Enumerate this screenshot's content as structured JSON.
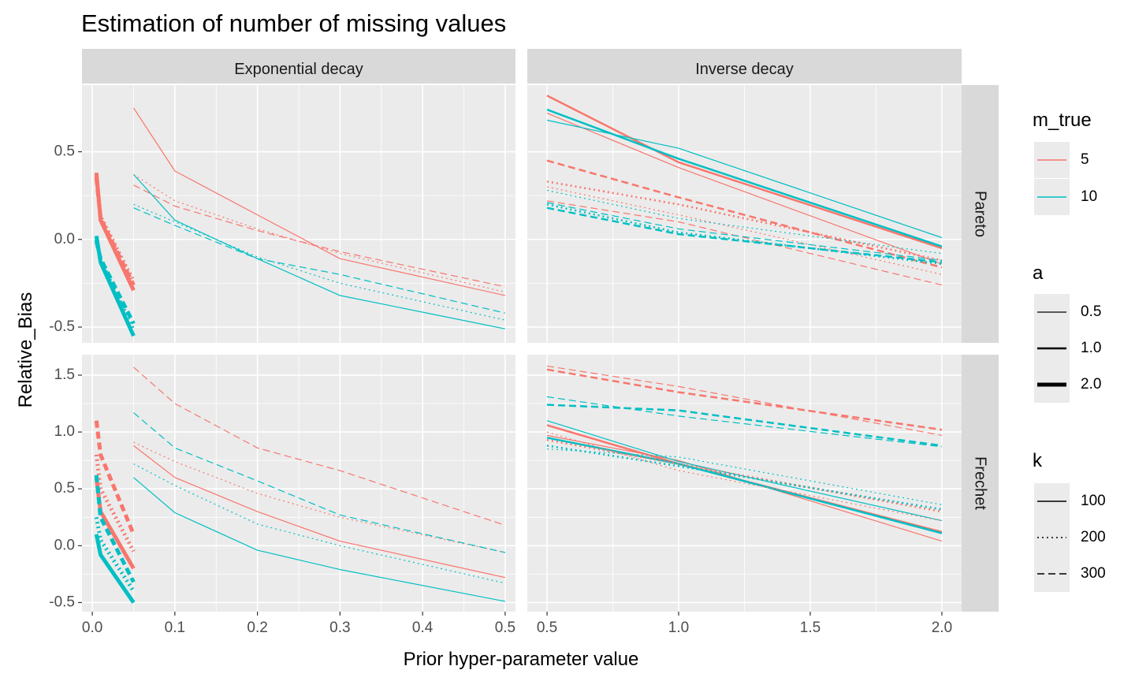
{
  "chart_data": {
    "type": "line",
    "title": "Estimation of number of missing values",
    "xlabel": "Prior hyper-parameter value",
    "ylabel": "Relative_Bias",
    "facets": {
      "columns": [
        "Exponential decay",
        "Inverse decay"
      ],
      "rows": [
        "Pareto",
        "Frechet"
      ]
    },
    "x_axes": [
      {
        "column": "Exponential decay",
        "range": [
          -0.0125,
          0.5125
        ],
        "ticks": [
          0.0,
          0.1,
          0.2,
          0.3,
          0.4,
          0.5
        ],
        "tick_labels": [
          "0.0",
          "0.1",
          "0.2",
          "0.3",
          "0.4",
          "0.5"
        ]
      },
      {
        "column": "Inverse decay",
        "range": [
          0.425,
          2.075
        ],
        "ticks": [
          0.5,
          1.0,
          1.5,
          2.0
        ],
        "tick_labels": [
          "0.5",
          "1.0",
          "1.5",
          "2.0"
        ]
      }
    ],
    "y_axes": [
      {
        "row": "Pareto",
        "range": [
          -0.59,
          0.88
        ],
        "ticks": [
          -0.5,
          0.0,
          0.5
        ],
        "tick_labels": [
          "-0.5",
          "0.0",
          "0.5"
        ]
      },
      {
        "row": "Frechet",
        "range": [
          -0.58,
          1.68
        ],
        "ticks": [
          -0.5,
          0.0,
          0.5,
          1.0,
          1.5
        ],
        "tick_labels": [
          "-0.5",
          "0.0",
          "0.5",
          "1.0",
          "1.5"
        ]
      }
    ],
    "grid": true,
    "legend_position": "right",
    "legends": {
      "m_true": {
        "title": "m_true",
        "entries": [
          {
            "label": "5",
            "color": "#F8766D"
          },
          {
            "label": "10",
            "color": "#00BFC4"
          }
        ]
      },
      "a": {
        "title": "a",
        "entries": [
          {
            "label": "0.5",
            "width": 1.2
          },
          {
            "label": "1.0",
            "width": 2.5
          },
          {
            "label": "2.0",
            "width": 5
          }
        ]
      },
      "k": {
        "title": "k",
        "entries": [
          {
            "label": "100",
            "dash": "solid"
          },
          {
            "label": "200",
            "dash": "dotted"
          },
          {
            "label": "300",
            "dash": "dashed"
          }
        ]
      }
    },
    "series": [
      {
        "col": "Exponential decay",
        "row": "Pareto",
        "m_true": "5",
        "a": "0.5",
        "k": "100",
        "x": [
          0.05,
          0.1,
          0.2,
          0.3,
          0.5
        ],
        "y": [
          0.75,
          0.39,
          0.14,
          -0.11,
          -0.32
        ]
      },
      {
        "col": "Exponential decay",
        "row": "Pareto",
        "m_true": "5",
        "a": "0.5",
        "k": "200",
        "x": [
          0.05,
          0.1,
          0.2,
          0.3,
          0.5
        ],
        "y": [
          0.37,
          0.22,
          0.06,
          -0.08,
          -0.3
        ]
      },
      {
        "col": "Exponential decay",
        "row": "Pareto",
        "m_true": "5",
        "a": "0.5",
        "k": "300",
        "x": [
          0.05,
          0.1,
          0.2,
          0.3,
          0.5
        ],
        "y": [
          0.31,
          0.19,
          0.05,
          -0.07,
          -0.27
        ]
      },
      {
        "col": "Exponential decay",
        "row": "Pareto",
        "m_true": "10",
        "a": "0.5",
        "k": "100",
        "x": [
          0.05,
          0.1,
          0.2,
          0.3,
          0.5
        ],
        "y": [
          0.37,
          0.11,
          -0.11,
          -0.32,
          -0.51
        ]
      },
      {
        "col": "Exponential decay",
        "row": "Pareto",
        "m_true": "10",
        "a": "0.5",
        "k": "200",
        "x": [
          0.05,
          0.1,
          0.2,
          0.3,
          0.5
        ],
        "y": [
          0.2,
          0.1,
          -0.1,
          -0.25,
          -0.46
        ]
      },
      {
        "col": "Exponential decay",
        "row": "Pareto",
        "m_true": "10",
        "a": "0.5",
        "k": "300",
        "x": [
          0.05,
          0.1,
          0.2,
          0.3,
          0.5
        ],
        "y": [
          0.18,
          0.08,
          -0.11,
          -0.2,
          -0.42
        ]
      },
      {
        "col": "Exponential decay",
        "row": "Pareto",
        "m_true": "5",
        "a": "2.0",
        "k": "100",
        "x": [
          0.005,
          0.01,
          0.05
        ],
        "y": [
          0.38,
          0.11,
          -0.29
        ]
      },
      {
        "col": "Exponential decay",
        "row": "Pareto",
        "m_true": "5",
        "a": "2.0",
        "k": "200",
        "x": [
          0.005,
          0.01,
          0.05
        ],
        "y": [
          0.36,
          0.13,
          -0.24
        ]
      },
      {
        "col": "Exponential decay",
        "row": "Pareto",
        "m_true": "5",
        "a": "2.0",
        "k": "300",
        "x": [
          0.005,
          0.01,
          0.05
        ],
        "y": [
          0.35,
          0.12,
          -0.26
        ]
      },
      {
        "col": "Exponential decay",
        "row": "Pareto",
        "m_true": "10",
        "a": "2.0",
        "k": "100",
        "x": [
          0.005,
          0.01,
          0.05
        ],
        "y": [
          0.02,
          -0.13,
          -0.55
        ]
      },
      {
        "col": "Exponential decay",
        "row": "Pareto",
        "m_true": "10",
        "a": "2.0",
        "k": "200",
        "x": [
          0.005,
          0.01,
          0.05
        ],
        "y": [
          0.0,
          -0.12,
          -0.52
        ]
      },
      {
        "col": "Exponential decay",
        "row": "Pareto",
        "m_true": "10",
        "a": "2.0",
        "k": "300",
        "x": [
          0.005,
          0.01,
          0.05
        ],
        "y": [
          -0.01,
          -0.11,
          -0.48
        ]
      },
      {
        "col": "Inverse decay",
        "row": "Pareto",
        "m_true": "5",
        "a": "0.5",
        "k": "100",
        "x": [
          0.5,
          1.0,
          2.0
        ],
        "y": [
          0.72,
          0.41,
          -0.14
        ]
      },
      {
        "col": "Inverse decay",
        "row": "Pareto",
        "m_true": "5",
        "a": "1.0",
        "k": "100",
        "x": [
          0.5,
          1.0,
          2.0
        ],
        "y": [
          0.82,
          0.44,
          -0.05
        ]
      },
      {
        "col": "Inverse decay",
        "row": "Pareto",
        "m_true": "10",
        "a": "0.5",
        "k": "100",
        "x": [
          0.5,
          1.0,
          2.0
        ],
        "y": [
          0.68,
          0.52,
          0.01
        ]
      },
      {
        "col": "Inverse decay",
        "row": "Pareto",
        "m_true": "10",
        "a": "1.0",
        "k": "100",
        "x": [
          0.5,
          1.0,
          2.0
        ],
        "y": [
          0.74,
          0.46,
          -0.04
        ]
      },
      {
        "col": "Inverse decay",
        "row": "Pareto",
        "m_true": "5",
        "a": "0.5",
        "k": "200",
        "x": [
          0.5,
          1.0,
          2.0
        ],
        "y": [
          0.3,
          0.14,
          -0.2
        ]
      },
      {
        "col": "Inverse decay",
        "row": "Pareto",
        "m_true": "5",
        "a": "1.0",
        "k": "200",
        "x": [
          0.5,
          1.0,
          2.0
        ],
        "y": [
          0.33,
          0.2,
          -0.12
        ]
      },
      {
        "col": "Inverse decay",
        "row": "Pareto",
        "m_true": "5",
        "a": "0.5",
        "k": "300",
        "x": [
          0.5,
          1.0,
          2.0
        ],
        "y": [
          0.22,
          0.1,
          -0.26
        ]
      },
      {
        "col": "Inverse decay",
        "row": "Pareto",
        "m_true": "5",
        "a": "1.0",
        "k": "300",
        "x": [
          0.5,
          1.0,
          2.0
        ],
        "y": [
          0.45,
          0.24,
          -0.16
        ]
      },
      {
        "col": "Inverse decay",
        "row": "Pareto",
        "m_true": "10",
        "a": "0.5",
        "k": "200",
        "x": [
          0.5,
          1.0,
          2.0
        ],
        "y": [
          0.28,
          0.12,
          -0.08
        ]
      },
      {
        "col": "Inverse decay",
        "row": "Pareto",
        "m_true": "10",
        "a": "1.0",
        "k": "200",
        "x": [
          0.5,
          1.0,
          2.0
        ],
        "y": [
          0.2,
          0.04,
          -0.14
        ]
      },
      {
        "col": "Inverse decay",
        "row": "Pareto",
        "m_true": "10",
        "a": "0.5",
        "k": "300",
        "x": [
          0.5,
          1.0,
          2.0
        ],
        "y": [
          0.21,
          0.06,
          -0.12
        ]
      },
      {
        "col": "Inverse decay",
        "row": "Pareto",
        "m_true": "10",
        "a": "1.0",
        "k": "300",
        "x": [
          0.5,
          1.0,
          2.0
        ],
        "y": [
          0.18,
          0.03,
          -0.13
        ]
      },
      {
        "col": "Exponential decay",
        "row": "Frechet",
        "m_true": "5",
        "a": "0.5",
        "k": "100",
        "x": [
          0.05,
          0.1,
          0.2,
          0.3,
          0.5
        ],
        "y": [
          0.88,
          0.6,
          0.3,
          0.04,
          -0.28
        ]
      },
      {
        "col": "Exponential decay",
        "row": "Frechet",
        "m_true": "5",
        "a": "0.5",
        "k": "200",
        "x": [
          0.05,
          0.1,
          0.2,
          0.3,
          0.5
        ],
        "y": [
          0.91,
          0.74,
          0.46,
          0.25,
          -0.06
        ]
      },
      {
        "col": "Exponential decay",
        "row": "Frechet",
        "m_true": "5",
        "a": "0.5",
        "k": "300",
        "x": [
          0.05,
          0.1,
          0.2,
          0.3,
          0.5
        ],
        "y": [
          1.57,
          1.25,
          0.86,
          0.66,
          0.18
        ]
      },
      {
        "col": "Exponential decay",
        "row": "Frechet",
        "m_true": "10",
        "a": "0.5",
        "k": "100",
        "x": [
          0.05,
          0.1,
          0.2,
          0.3,
          0.5
        ],
        "y": [
          0.6,
          0.29,
          -0.04,
          -0.21,
          -0.49
        ]
      },
      {
        "col": "Exponential decay",
        "row": "Frechet",
        "m_true": "10",
        "a": "0.5",
        "k": "200",
        "x": [
          0.05,
          0.1,
          0.2,
          0.3,
          0.5
        ],
        "y": [
          0.72,
          0.53,
          0.19,
          0.0,
          -0.33
        ]
      },
      {
        "col": "Exponential decay",
        "row": "Frechet",
        "m_true": "10",
        "a": "0.5",
        "k": "300",
        "x": [
          0.05,
          0.1,
          0.2,
          0.3,
          0.5
        ],
        "y": [
          1.17,
          0.86,
          0.57,
          0.27,
          -0.06
        ]
      },
      {
        "col": "Exponential decay",
        "row": "Frechet",
        "m_true": "5",
        "a": "2.0",
        "k": "100",
        "x": [
          0.005,
          0.01,
          0.05
        ],
        "y": [
          0.6,
          0.3,
          -0.2
        ]
      },
      {
        "col": "Exponential decay",
        "row": "Frechet",
        "m_true": "5",
        "a": "2.0",
        "k": "200",
        "x": [
          0.005,
          0.01,
          0.05
        ],
        "y": [
          0.8,
          0.5,
          -0.05
        ]
      },
      {
        "col": "Exponential decay",
        "row": "Frechet",
        "m_true": "5",
        "a": "2.0",
        "k": "300",
        "x": [
          0.005,
          0.01,
          0.05
        ],
        "y": [
          1.1,
          0.8,
          0.1
        ]
      },
      {
        "col": "Exponential decay",
        "row": "Frechet",
        "m_true": "10",
        "a": "2.0",
        "k": "100",
        "x": [
          0.005,
          0.01,
          0.05
        ],
        "y": [
          0.1,
          -0.08,
          -0.5
        ]
      },
      {
        "col": "Exponential decay",
        "row": "Frechet",
        "m_true": "10",
        "a": "2.0",
        "k": "200",
        "x": [
          0.005,
          0.01,
          0.05
        ],
        "y": [
          0.25,
          0.05,
          -0.4
        ]
      },
      {
        "col": "Exponential decay",
        "row": "Frechet",
        "m_true": "10",
        "a": "2.0",
        "k": "300",
        "x": [
          0.005,
          0.01,
          0.05
        ],
        "y": [
          0.62,
          0.25,
          -0.32
        ]
      },
      {
        "col": "Inverse decay",
        "row": "Frechet",
        "m_true": "5",
        "a": "0.5",
        "k": "100",
        "x": [
          0.5,
          1.0,
          2.0
        ],
        "y": [
          0.97,
          0.75,
          0.04
        ]
      },
      {
        "col": "Inverse decay",
        "row": "Frechet",
        "m_true": "5",
        "a": "1.0",
        "k": "100",
        "x": [
          0.5,
          1.0,
          2.0
        ],
        "y": [
          1.06,
          0.72,
          0.12
        ]
      },
      {
        "col": "Inverse decay",
        "row": "Frechet",
        "m_true": "10",
        "a": "0.5",
        "k": "100",
        "x": [
          0.5,
          1.0,
          2.0
        ],
        "y": [
          1.1,
          0.74,
          0.22
        ]
      },
      {
        "col": "Inverse decay",
        "row": "Frechet",
        "m_true": "10",
        "a": "1.0",
        "k": "100",
        "x": [
          0.5,
          1.0,
          2.0
        ],
        "y": [
          0.95,
          0.72,
          0.11
        ]
      },
      {
        "col": "Inverse decay",
        "row": "Frechet",
        "m_true": "5",
        "a": "0.5",
        "k": "200",
        "x": [
          0.5,
          1.0,
          2.0
        ],
        "y": [
          1.0,
          0.66,
          0.22
        ]
      },
      {
        "col": "Inverse decay",
        "row": "Frechet",
        "m_true": "5",
        "a": "1.0",
        "k": "200",
        "x": [
          0.5,
          1.0,
          2.0
        ],
        "y": [
          0.93,
          0.72,
          0.3
        ]
      },
      {
        "col": "Inverse decay",
        "row": "Frechet",
        "m_true": "10",
        "a": "0.5",
        "k": "200",
        "x": [
          0.5,
          1.0,
          2.0
        ],
        "y": [
          0.85,
          0.78,
          0.36
        ]
      },
      {
        "col": "Inverse decay",
        "row": "Frechet",
        "m_true": "10",
        "a": "1.0",
        "k": "200",
        "x": [
          0.5,
          1.0,
          2.0
        ],
        "y": [
          0.88,
          0.7,
          0.32
        ]
      },
      {
        "col": "Inverse decay",
        "row": "Frechet",
        "m_true": "5",
        "a": "0.5",
        "k": "300",
        "x": [
          0.5,
          1.0,
          2.0
        ],
        "y": [
          1.58,
          1.4,
          0.97
        ]
      },
      {
        "col": "Inverse decay",
        "row": "Frechet",
        "m_true": "5",
        "a": "1.0",
        "k": "300",
        "x": [
          0.5,
          1.0,
          2.0
        ],
        "y": [
          1.55,
          1.35,
          1.02
        ]
      },
      {
        "col": "Inverse decay",
        "row": "Frechet",
        "m_true": "10",
        "a": "0.5",
        "k": "300",
        "x": [
          0.5,
          1.0,
          2.0
        ],
        "y": [
          1.31,
          1.14,
          0.87
        ]
      },
      {
        "col": "Inverse decay",
        "row": "Frechet",
        "m_true": "10",
        "a": "1.0",
        "k": "300",
        "x": [
          0.5,
          1.0,
          2.0
        ],
        "y": [
          1.24,
          1.19,
          0.88
        ]
      }
    ]
  }
}
